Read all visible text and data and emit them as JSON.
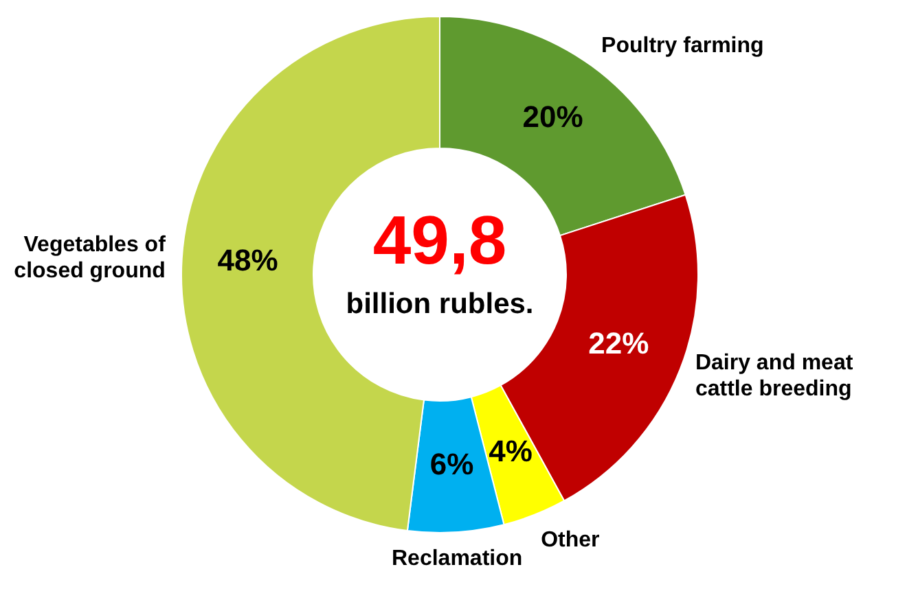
{
  "chart_data": {
    "type": "donut",
    "categories": [
      "Poultry farming",
      "Dairy and meat cattle breeding",
      "Other",
      "Reclamation",
      "Vegetables of closed ground"
    ],
    "values": [
      20,
      22,
      4,
      6,
      48
    ],
    "colors": [
      "#5f9a2f",
      "#c00000",
      "#ffff00",
      "#00b0f0",
      "#c4d64c"
    ],
    "value_labels": [
      "20%",
      "22%",
      "4%",
      "6%",
      "48%"
    ],
    "annotations": [
      "49,8",
      "billion rubles."
    ]
  }
}
